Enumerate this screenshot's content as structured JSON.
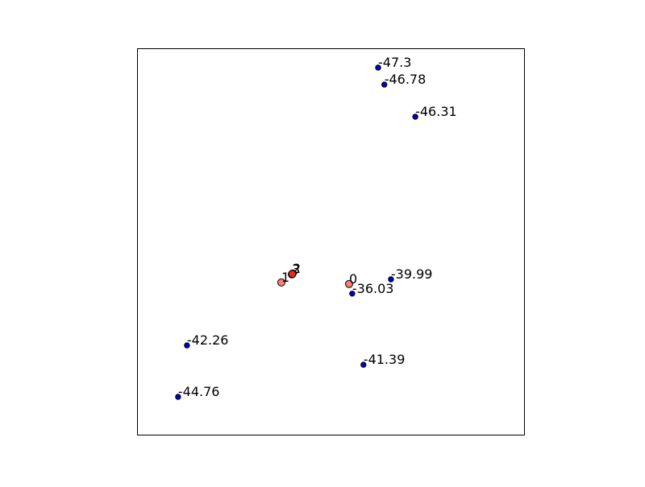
{
  "chart_data": {
    "type": "scatter",
    "title": "",
    "xlabel": "",
    "ylabel": "",
    "xlim": [
      0,
      100
    ],
    "ylim": [
      0,
      100
    ],
    "grid": false,
    "axis_ticks": false,
    "series": [
      {
        "name": "blue-points",
        "color": "#0000cc",
        "edge_color": "#000000",
        "points": [
          {
            "x": 62.3,
            "y": 95.0,
            "label": "-47.3"
          },
          {
            "x": 63.9,
            "y": 90.6,
            "label": "-46.78"
          },
          {
            "x": 71.9,
            "y": 82.3,
            "label": "-46.31"
          },
          {
            "x": 65.6,
            "y": 40.2,
            "label": "-39.99"
          },
          {
            "x": 55.6,
            "y": 36.5,
            "label": "-36.03"
          },
          {
            "x": 12.9,
            "y": 23.1,
            "label": "-42.26"
          },
          {
            "x": 58.5,
            "y": 18.1,
            "label": "-41.39"
          },
          {
            "x": 10.6,
            "y": 9.8,
            "label": "-44.76"
          }
        ]
      },
      {
        "name": "salmon-points",
        "color": "#fa8072",
        "edge_color": "#000000",
        "points": [
          {
            "x": 37.3,
            "y": 39.4,
            "label": "1"
          },
          {
            "x": 40.0,
            "y": 41.5,
            "label": "3"
          },
          {
            "x": 40.2,
            "y": 41.7,
            "label": "2"
          },
          {
            "x": 54.8,
            "y": 39.0,
            "label": "0"
          }
        ]
      },
      {
        "name": "red-point",
        "color": "#e03010",
        "edge_color": "#000000",
        "points": [
          {
            "x": 40.1,
            "y": 41.6,
            "label": ""
          }
        ]
      }
    ]
  }
}
